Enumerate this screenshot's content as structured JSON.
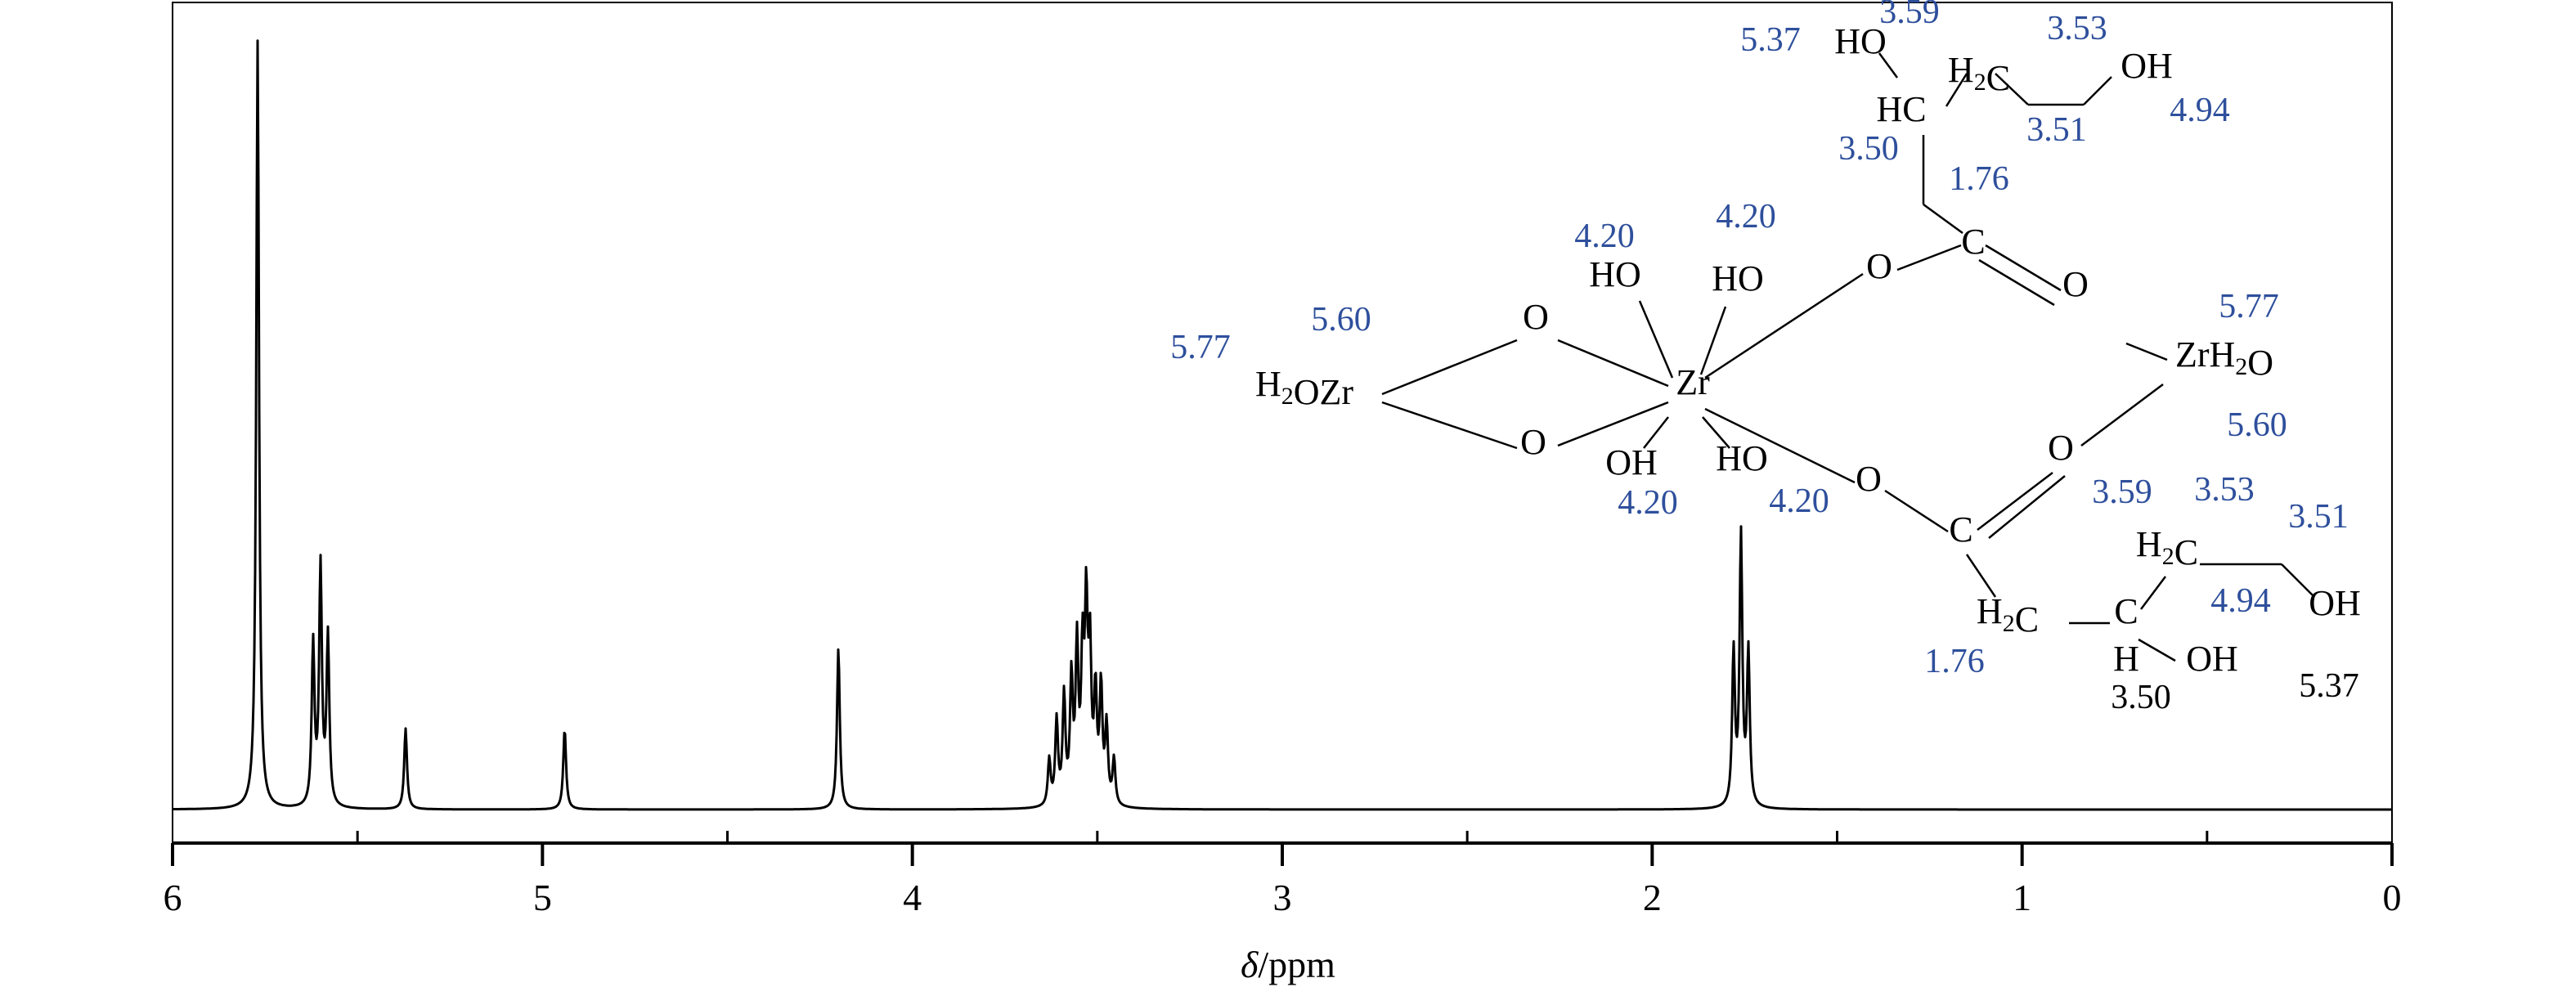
{
  "colors": {
    "ink": "#000000",
    "annotation": "#2e4f9c",
    "background": "#ffffff"
  },
  "chart_data": {
    "type": "line",
    "xlabel_italic": "δ",
    "xlabel_rest": "/ppm",
    "x_reversed": true,
    "xlim": [
      6,
      0
    ],
    "x_ticks": [
      6,
      5,
      4,
      3,
      2,
      1,
      0
    ],
    "x_minor_ticks": [
      5.5,
      4.5,
      3.5,
      2.5,
      1.5,
      0.5
    ],
    "x_tick_labels": [
      "6",
      "5",
      "4",
      "3",
      "2",
      "1",
      "0"
    ],
    "y_axis_shown": false,
    "grid": false,
    "peaks": [
      {
        "ppm": 5.77,
        "height": 1.0
      },
      {
        "ppm": 5.62,
        "height": 0.21
      },
      {
        "ppm": 5.6,
        "height": 0.31
      },
      {
        "ppm": 5.58,
        "height": 0.22
      },
      {
        "ppm": 5.37,
        "height": 0.105
      },
      {
        "ppm": 4.94,
        "height": 0.105
      },
      {
        "ppm": 4.2,
        "height": 0.21
      },
      {
        "ppm": 3.63,
        "height": 0.06
      },
      {
        "ppm": 3.61,
        "height": 0.11
      },
      {
        "ppm": 3.59,
        "height": 0.14
      },
      {
        "ppm": 3.57,
        "height": 0.16
      },
      {
        "ppm": 3.555,
        "height": 0.2
      },
      {
        "ppm": 3.54,
        "height": 0.18
      },
      {
        "ppm": 3.53,
        "height": 0.24
      },
      {
        "ppm": 3.52,
        "height": 0.19
      },
      {
        "ppm": 3.505,
        "height": 0.14
      },
      {
        "ppm": 3.49,
        "height": 0.15
      },
      {
        "ppm": 3.475,
        "height": 0.1
      },
      {
        "ppm": 3.455,
        "height": 0.06
      },
      {
        "ppm": 1.78,
        "height": 0.2
      },
      {
        "ppm": 1.76,
        "height": 0.35
      },
      {
        "ppm": 1.74,
        "height": 0.2
      }
    ],
    "structure": {
      "atoms": [
        {
          "id": "ho_top1",
          "text": "HO"
        },
        {
          "id": "h2c_top",
          "text": "H2C",
          "render": "sub"
        },
        {
          "id": "oh_top",
          "text": "OH"
        },
        {
          "id": "hc_top",
          "text": "HC"
        },
        {
          "id": "c_top",
          "text": "C"
        },
        {
          "id": "o_top_ester",
          "text": "O"
        },
        {
          "id": "o_top_dbl",
          "text": "O"
        },
        {
          "id": "zr_right",
          "text": "ZrH2O"
        },
        {
          "id": "o_bot_dbl",
          "text": "O"
        },
        {
          "id": "o_bot_ester",
          "text": "O"
        },
        {
          "id": "c_bot",
          "text": "C"
        },
        {
          "id": "h2c_bot1",
          "text": "H2C"
        },
        {
          "id": "c_bot2",
          "text": "C"
        },
        {
          "id": "h_bot",
          "text": "H"
        },
        {
          "id": "oh_bot",
          "text": "OH"
        },
        {
          "id": "h2c_bot2",
          "text": "H2C"
        },
        {
          "id": "oh_bot2",
          "text": "OH"
        },
        {
          "id": "zr_center",
          "text": "Zr"
        },
        {
          "id": "ho_zr1",
          "text": "HO"
        },
        {
          "id": "ho_zr2",
          "text": "HO"
        },
        {
          "id": "oh_zr3",
          "text": "OH"
        },
        {
          "id": "ho_zr4",
          "text": "HO"
        },
        {
          "id": "o_bridge1",
          "text": "O"
        },
        {
          "id": "o_bridge2",
          "text": "O"
        },
        {
          "id": "zr_left",
          "text": "H2OZr"
        }
      ],
      "shift_labels": [
        {
          "id": "s_537_top",
          "text": "5.37",
          "color": "annotation"
        },
        {
          "id": "s_359_top",
          "text": "3.59",
          "color": "annotation"
        },
        {
          "id": "s_353_top",
          "text": "3.53",
          "color": "annotation"
        },
        {
          "id": "s_351_top",
          "text": "3.51",
          "color": "annotation"
        },
        {
          "id": "s_494_top",
          "text": "4.94",
          "color": "annotation"
        },
        {
          "id": "s_350_top",
          "text": "3.50",
          "color": "annotation"
        },
        {
          "id": "s_176_top",
          "text": "1.76",
          "color": "annotation"
        },
        {
          "id": "s_420_a",
          "text": "4.20",
          "color": "annotation"
        },
        {
          "id": "s_420_b",
          "text": "4.20",
          "color": "annotation"
        },
        {
          "id": "s_577_left",
          "text": "5.77",
          "color": "annotation"
        },
        {
          "id": "s_560_left",
          "text": "5.60",
          "color": "annotation"
        },
        {
          "id": "s_577_right",
          "text": "5.77",
          "color": "annotation"
        },
        {
          "id": "s_560_right",
          "text": "5.60",
          "color": "annotation"
        },
        {
          "id": "s_420_c",
          "text": "4.20",
          "color": "annotation"
        },
        {
          "id": "s_420_d",
          "text": "4.20",
          "color": "annotation"
        },
        {
          "id": "s_359_bot",
          "text": "3.59",
          "color": "annotation"
        },
        {
          "id": "s_353_bot",
          "text": "3.53",
          "color": "annotation"
        },
        {
          "id": "s_351_bot",
          "text": "3.51",
          "color": "annotation"
        },
        {
          "id": "s_494_bot",
          "text": "4.94",
          "color": "annotation"
        },
        {
          "id": "s_176_bot",
          "text": "1.76",
          "color": "annotation"
        },
        {
          "id": "s_350_bot",
          "text": "3.50",
          "color": "ink"
        },
        {
          "id": "s_537_bot",
          "text": "5.37",
          "color": "ink"
        }
      ]
    }
  }
}
